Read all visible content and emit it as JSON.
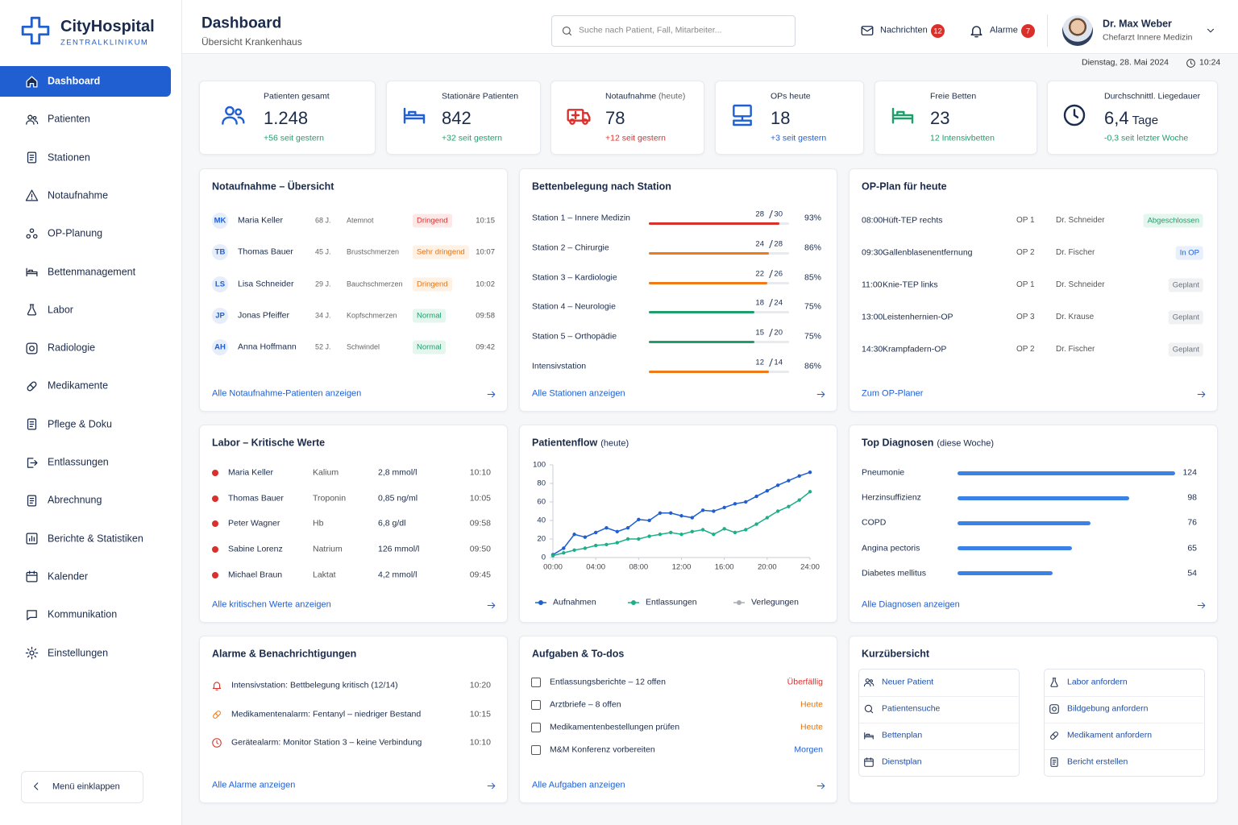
{
  "brand": {
    "name": "CityHospital",
    "subtitle": "ZENTRALKLINIKUM"
  },
  "nav": [
    "Dashboard",
    "Patienten",
    "Stationen",
    "Notaufnahme",
    "OP-Planung",
    "Bettenmanagement",
    "Labor",
    "Radiologie",
    "Medikamente",
    "Pflege & Doku",
    "Entlassungen",
    "Abrechnung",
    "Berichte & Statistiken",
    "Kalender",
    "Kommunikation",
    "Einstellungen"
  ],
  "collapse": "Menü einklappen",
  "header": {
    "title": "Dashboard",
    "subtitle": "Übersicht Krankenhaus",
    "search": "Suche nach Patient, Fall, Mitarbeiter...",
    "messages": {
      "label": "Nachrichten",
      "count": 12
    },
    "alarms": {
      "label": "Alarme",
      "count": 7
    },
    "user": {
      "name": "Dr. Max Weber",
      "role": "Chefarzt Innere Medizin"
    },
    "date": "Dienstag, 28. Mai 2024",
    "time": "10:24"
  },
  "kpis": [
    {
      "label": "Patienten gesamt",
      "value": "1.248",
      "delta": "+56 seit gestern",
      "icon_color": "#1f5fd1",
      "delta_color": "#1f9d6b"
    },
    {
      "label": "Stationäre Patienten",
      "value": 842,
      "delta": "+32 seit gestern",
      "icon_color": "#1f5fd1",
      "delta_color": "#1f9d6b"
    },
    {
      "label": "Notaufnahme",
      "note": "(heute)",
      "value": 78,
      "delta": "+12 seit gestern",
      "icon_color": "#d9302c",
      "delta_color": "#d9302c"
    },
    {
      "label": "OPs heute",
      "value": 18,
      "delta": "+3 seit gestern",
      "icon_color": "#1f5fd1",
      "delta_color": "#1f5fd1"
    },
    {
      "label": "Freie Betten",
      "value": 23,
      "delta": "12 Intensivbetten",
      "icon_color": "#1f9d6b",
      "delta_color": "#1f9d6b"
    },
    {
      "label": "Durchschnittl. Liegedauer",
      "value": "6,4",
      "unit": "Tage",
      "delta": "-0,3 seit letzter Woche",
      "icon_color": "#1b2b4b",
      "delta_color": "#1f9d6b"
    }
  ],
  "emergency": {
    "title": "Notaufnahme – Übersicht",
    "link": "Alle Notaufnahme-Patienten anzeigen",
    "rows": [
      {
        "initials": "MK",
        "name": "Maria Keller",
        "age": "68 J.",
        "complaint": "Atemnot",
        "priority": "Dringend",
        "tone": "red",
        "time": "10:15"
      },
      {
        "initials": "TB",
        "name": "Thomas Bauer",
        "age": "45 J.",
        "complaint": "Brustschmerzen",
        "priority": "Sehr dringend",
        "tone": "orange",
        "time": "10:07"
      },
      {
        "initials": "LS",
        "name": "Lisa Schneider",
        "age": "29 J.",
        "complaint": "Bauchschmerzen",
        "priority": "Dringend",
        "tone": "orange",
        "time": "10:02"
      },
      {
        "initials": "JP",
        "name": "Jonas Pfeiffer",
        "age": "34 J.",
        "complaint": "Kopfschmerzen",
        "priority": "Normal",
        "tone": "green",
        "time": "09:58"
      },
      {
        "initials": "AH",
        "name": "Anna Hoffmann",
        "age": "52 J.",
        "complaint": "Schwindel",
        "priority": "Normal",
        "tone": "green",
        "time": "09:42"
      }
    ]
  },
  "beds": {
    "title": "Bettenbelegung nach Station",
    "link": "Alle Stationen anzeigen",
    "rows": [
      {
        "name": "Station 1 – Innere Medizin",
        "occupied": 28,
        "total": 30,
        "percent": "93%",
        "color": "#d9302c"
      },
      {
        "name": "Station 2 – Chirurgie",
        "occupied": 24,
        "total": 28,
        "percent": "86%",
        "color": "#ef7a1a"
      },
      {
        "name": "Station 3 – Kardiologie",
        "occupied": 22,
        "total": 26,
        "percent": "85%",
        "color": "#ef7a1a"
      },
      {
        "name": "Station 4 – Neurologie",
        "occupied": 18,
        "total": 24,
        "percent": "75%",
        "color": "#1f9d6b"
      },
      {
        "name": "Station 5 – Orthopädie",
        "occupied": 15,
        "total": 20,
        "percent": "75%",
        "color": "#1f9d6b"
      },
      {
        "name": "Intensivstation",
        "occupied": 12,
        "total": 14,
        "percent": "86%",
        "color": "#ef7a1a"
      }
    ]
  },
  "op_plan": {
    "title": "OP-Plan für heute",
    "link": "Zum OP-Planer",
    "rows": [
      {
        "time": "08:00",
        "procedure": "Hüft-TEP rechts",
        "room": "OP 1",
        "surgeon": "Dr. Schneider",
        "status": "Abgeschlossen",
        "tone": "green"
      },
      {
        "time": "09:30",
        "procedure": "Gallenblasenentfernung",
        "room": "OP 2",
        "surgeon": "Dr. Fischer",
        "status": "In OP",
        "tone": "blue"
      },
      {
        "time": "11:00",
        "procedure": "Knie-TEP links",
        "room": "OP 1",
        "surgeon": "Dr. Schneider",
        "status": "Geplant",
        "tone": "gray"
      },
      {
        "time": "13:00",
        "procedure": "Leistenhernien-OP",
        "room": "OP 3",
        "surgeon": "Dr. Krause",
        "status": "Geplant",
        "tone": "gray"
      },
      {
        "time": "14:30",
        "procedure": "Krampfadern-OP",
        "room": "OP 2",
        "surgeon": "Dr. Fischer",
        "status": "Geplant",
        "tone": "gray"
      }
    ]
  },
  "lab": {
    "title": "Labor – Kritische Werte",
    "link": "Alle kritischen Werte anzeigen",
    "rows": [
      {
        "name": "Maria Keller",
        "parameter": "Kalium",
        "value": "2,8 mmol/l",
        "time": "10:10"
      },
      {
        "name": "Thomas Bauer",
        "parameter": "Troponin",
        "value": "0,85 ng/ml",
        "time": "10:05"
      },
      {
        "name": "Peter Wagner",
        "parameter": "Hb",
        "value": "6,8 g/dl",
        "time": "09:58"
      },
      {
        "name": "Sabine Lorenz",
        "parameter": "Natrium",
        "value": "126 mmol/l",
        "time": "09:50"
      },
      {
        "name": "Michael Braun",
        "parameter": "Laktat",
        "value": "4,2 mmol/l",
        "time": "09:45"
      }
    ]
  },
  "patient_flow": {
    "type": "line",
    "title": "Patientenflow",
    "note": "(heute)",
    "x": [
      0,
      1,
      2,
      3,
      4,
      5,
      6,
      7,
      8,
      9,
      10,
      11,
      12,
      13,
      14,
      15,
      16,
      17,
      18,
      19,
      20,
      21,
      22,
      23,
      24
    ],
    "xlim": [
      0,
      24
    ],
    "xticks": [
      {
        "value": 0,
        "label": "00:00"
      },
      {
        "value": 4,
        "label": "04:00"
      },
      {
        "value": 8,
        "label": "08:00"
      },
      {
        "value": 12,
        "label": "12:00"
      },
      {
        "value": 16,
        "label": "16:00"
      },
      {
        "value": 20,
        "label": "20:00"
      },
      {
        "value": 24,
        "label": "24:00"
      }
    ],
    "ylim": [
      0,
      100
    ],
    "yticks": [
      0,
      20,
      40,
      60,
      80,
      100
    ],
    "series": [
      {
        "name": "Aufnahmen",
        "color": "#1f5fd1",
        "values": [
          3,
          10,
          25,
          22,
          27,
          32,
          28,
          32,
          41,
          40,
          48,
          48,
          45,
          43,
          51,
          50,
          54,
          58,
          60,
          66,
          72,
          78,
          83,
          88,
          92
        ]
      },
      {
        "name": "Entlassungen",
        "color": "#1fae8a",
        "values": [
          2,
          5,
          8,
          10,
          13,
          14,
          16,
          20,
          20,
          23,
          25,
          27,
          25,
          28,
          30,
          25,
          31,
          27,
          30,
          36,
          43,
          50,
          55,
          62,
          71
        ]
      },
      {
        "name": "Verlegungen",
        "color": "#a9adb5",
        "values": [
          null,
          null,
          null,
          null,
          null,
          null,
          null,
          null,
          null,
          null,
          null,
          null,
          null,
          null,
          null,
          null,
          null,
          null,
          null,
          null,
          null,
          null,
          null,
          null,
          null
        ]
      }
    ]
  },
  "diagnoses": {
    "title": "Top Diagnosen",
    "note": "(diese Woche)",
    "link": "Alle Diagnosen anzeigen",
    "color": "#3b82e6",
    "items": [
      {
        "name": "Pneumonie",
        "value": 124
      },
      {
        "name": "Herzinsuffizienz",
        "value": 98
      },
      {
        "name": "COPD",
        "value": 76
      },
      {
        "name": "Angina pectoris",
        "value": 65
      },
      {
        "name": "Diabetes mellitus",
        "value": 54
      }
    ]
  },
  "alerts": {
    "title": "Alarme & Benachrichtigungen",
    "link": "Alle Alarme anzeigen",
    "rows": [
      {
        "text": "Intensivstation: Bettbelegung kritisch (12/14)",
        "time": "10:20",
        "color": "#d9302c"
      },
      {
        "text": "Medikamentenalarm: Fentanyl – niedriger Bestand",
        "time": "10:15",
        "color": "#ef7a1a"
      },
      {
        "text": "Gerätealarm: Monitor Station 3 – keine Verbindung",
        "time": "10:10",
        "color": "#d9302c"
      }
    ]
  },
  "tasks": {
    "title": "Aufgaben & To-dos",
    "link": "Alle Aufgaben anzeigen",
    "rows": [
      {
        "text": "Entlassungsberichte – 12 offen",
        "status": "Überfällig",
        "tone": "red"
      },
      {
        "text": "Arztbriefe – 8 offen",
        "status": "Heute",
        "tone": "orange"
      },
      {
        "text": "Medikamentenbestellungen prüfen",
        "status": "Heute",
        "tone": "orange"
      },
      {
        "text": "M&M Konferenz vorbereiten",
        "status": "Morgen",
        "tone": "blue"
      }
    ]
  },
  "quick": {
    "title": "Kurzübersicht",
    "columns": [
      [
        "Neuer Patient",
        "Patientensuche",
        "Bettenplan",
        "Dienstplan"
      ],
      [
        "Labor anfordern",
        "Bildgebung anfordern",
        "Medikament anfordern",
        "Bericht erstellen"
      ]
    ]
  }
}
